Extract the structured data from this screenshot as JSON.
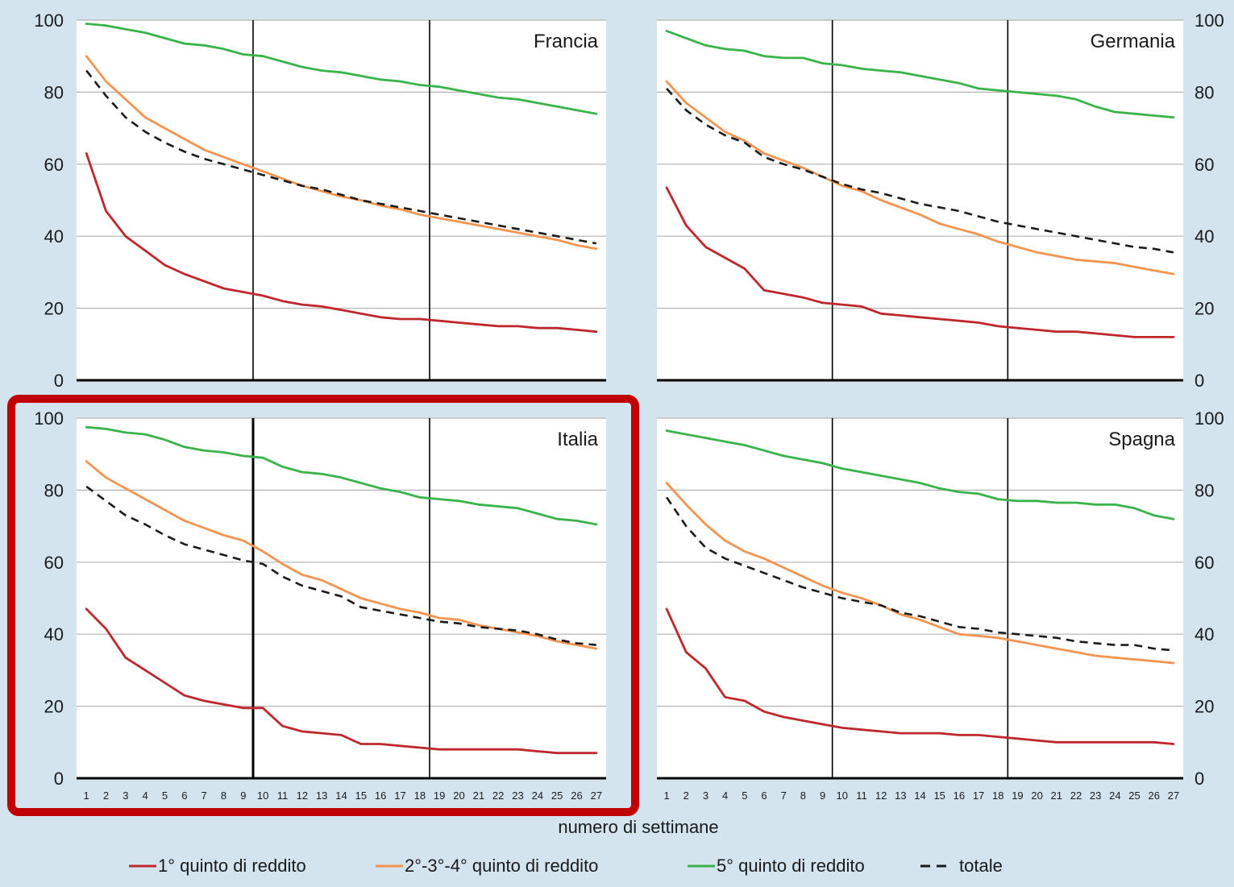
{
  "colors": {
    "background": "#d3e4ef",
    "plot_background": "#ffffff",
    "q1": "#c0272d",
    "q234": "#f39450",
    "q5": "#3ab34a",
    "totale": "#1a1a1a",
    "highlight": "#c00000"
  },
  "chart_data": {
    "type": "line",
    "xlabel": "numero di settimane",
    "ylim": [
      0,
      100
    ],
    "yticks": [
      "0",
      "20",
      "40",
      "60",
      "80",
      "100"
    ],
    "x": [
      1,
      2,
      3,
      4,
      5,
      6,
      7,
      8,
      9,
      10,
      11,
      12,
      13,
      14,
      15,
      16,
      17,
      18,
      19,
      20,
      21,
      22,
      23,
      24,
      25,
      26,
      27
    ],
    "xtick_labels": [
      "1",
      "2",
      "3",
      "4",
      "5",
      "6",
      "7",
      "8",
      "9",
      "10",
      "11",
      "12",
      "13",
      "14",
      "15",
      "16",
      "17",
      "18",
      "19",
      "20",
      "21",
      "22",
      "23",
      "24",
      "25",
      "26",
      "27"
    ],
    "vertical_markers": [
      9.5,
      18.5
    ],
    "highlighted_panel": "Italia",
    "legend": [
      {
        "key": "q1",
        "label": "1° quinto di reddito",
        "style": "solid"
      },
      {
        "key": "q234",
        "label": "2°-3°-4° quinto di reddito",
        "style": "solid"
      },
      {
        "key": "q5",
        "label": "5° quinto di reddito",
        "style": "solid"
      },
      {
        "key": "totale",
        "label": "totale",
        "style": "dashed"
      }
    ],
    "panels": [
      {
        "name": "Francia",
        "series": {
          "q5": [
            99,
            98.5,
            97.5,
            96.5,
            95,
            93.5,
            93,
            92,
            90.5,
            90,
            88.5,
            87,
            86,
            85.5,
            84.5,
            83.5,
            83,
            82,
            81.5,
            80.5,
            79.5,
            78.5,
            78,
            77,
            76,
            75,
            74
          ],
          "q234": [
            90,
            83,
            78,
            73,
            70,
            67,
            64,
            62,
            60,
            58,
            56,
            54,
            52.5,
            51,
            50,
            48.5,
            47.5,
            46,
            45,
            44,
            43,
            42,
            41,
            40,
            39,
            37.5,
            36.5
          ],
          "totale": [
            86,
            79,
            73,
            69,
            66,
            63.5,
            61.5,
            60,
            58.5,
            57,
            55.5,
            54,
            53,
            51.5,
            50,
            49,
            48,
            47,
            46,
            45,
            44,
            43,
            42,
            41,
            40,
            39,
            38
          ],
          "q1": [
            63,
            47,
            40,
            36,
            32,
            29.5,
            27.5,
            25.5,
            24.5,
            23.5,
            22,
            21,
            20.5,
            19.5,
            18.5,
            17.5,
            17,
            17,
            16.5,
            16,
            15.5,
            15,
            15,
            14.5,
            14.5,
            14,
            13.5
          ]
        }
      },
      {
        "name": "Germania",
        "series": {
          "q5": [
            97,
            95,
            93,
            92,
            91.5,
            90,
            89.5,
            89.5,
            88,
            87.5,
            86.5,
            86,
            85.5,
            84.5,
            83.5,
            82.5,
            81,
            80.5,
            80,
            79.5,
            79,
            78,
            76,
            74.5,
            74,
            73.5,
            73
          ],
          "q234": [
            83,
            77,
            73,
            69,
            66.5,
            63,
            61,
            59,
            56.5,
            54,
            52.5,
            50,
            48,
            46,
            43.5,
            42,
            40.5,
            38.5,
            37,
            35.5,
            34.5,
            33.5,
            33,
            32.5,
            31.5,
            30.5,
            29.5
          ],
          "totale": [
            81,
            75,
            71,
            68,
            66,
            62,
            60,
            58.5,
            56.5,
            54.5,
            53,
            52,
            50.5,
            49,
            48,
            47,
            45.5,
            44,
            43,
            42,
            41,
            40,
            39,
            38,
            37,
            36.5,
            35.5
          ],
          "q1": [
            53.5,
            43,
            37,
            34,
            31,
            25,
            24,
            23,
            21.5,
            21,
            20.5,
            18.5,
            18,
            17.5,
            17,
            16.5,
            16,
            15,
            14.5,
            14,
            13.5,
            13.5,
            13,
            12.5,
            12,
            12,
            12
          ]
        }
      },
      {
        "name": "Italia",
        "series": {
          "q5": [
            97.5,
            97,
            96,
            95.5,
            94,
            92,
            91,
            90.5,
            89.5,
            89,
            86.5,
            85,
            84.5,
            83.5,
            82,
            80.5,
            79.5,
            78,
            77.5,
            77,
            76,
            75.5,
            75,
            73.5,
            72,
            71.5,
            70.5
          ],
          "q234": [
            88,
            83.5,
            80.5,
            77.5,
            74.5,
            71.5,
            69.5,
            67.5,
            66,
            63,
            59.5,
            56.5,
            55,
            52.5,
            50,
            48.5,
            47,
            46,
            44.5,
            44,
            42.5,
            41.5,
            40.5,
            39.5,
            38,
            37,
            36
          ],
          "totale": [
            81,
            77,
            73,
            70.5,
            67.5,
            65,
            63.5,
            62,
            60.5,
            59.5,
            56,
            53.5,
            52,
            50.5,
            47.5,
            46.5,
            45.5,
            44.5,
            43.5,
            43,
            42,
            41.5,
            41,
            40,
            38.5,
            37.5,
            37
          ],
          "q1": [
            47,
            41.5,
            33.5,
            30,
            26.5,
            23,
            21.5,
            20.5,
            19.5,
            19.5,
            14.5,
            13,
            12.5,
            12,
            9.5,
            9.5,
            9,
            8.5,
            8,
            8,
            8,
            8,
            8,
            7.5,
            7,
            7,
            7
          ]
        }
      },
      {
        "name": "Spagna",
        "series": {
          "q5": [
            96.5,
            95.5,
            94.5,
            93.5,
            92.5,
            91,
            89.5,
            88.5,
            87.5,
            86,
            85,
            84,
            83,
            82,
            80.5,
            79.5,
            79,
            77.5,
            77,
            77,
            76.5,
            76.5,
            76,
            76,
            75,
            73,
            72
          ],
          "q234": [
            82,
            76,
            70.5,
            66,
            63,
            61,
            58.5,
            56,
            53.5,
            51.5,
            50,
            48,
            45.5,
            44,
            42,
            40,
            39.5,
            39,
            38,
            37,
            36,
            35,
            34,
            33.5,
            33,
            32.5,
            32
          ],
          "totale": [
            78,
            70,
            64,
            61,
            59,
            57,
            55,
            53,
            51.5,
            50,
            49,
            48,
            46,
            45,
            43.5,
            42,
            41.5,
            40.5,
            40,
            39.5,
            39,
            38,
            37.5,
            37,
            37,
            36,
            35.5
          ],
          "q1": [
            47,
            35,
            30.5,
            22.5,
            21.5,
            18.5,
            17,
            16,
            15,
            14,
            13.5,
            13,
            12.5,
            12.5,
            12.5,
            12,
            12,
            11.5,
            11,
            10.5,
            10,
            10,
            10,
            10,
            10,
            10,
            9.5
          ]
        }
      }
    ]
  }
}
